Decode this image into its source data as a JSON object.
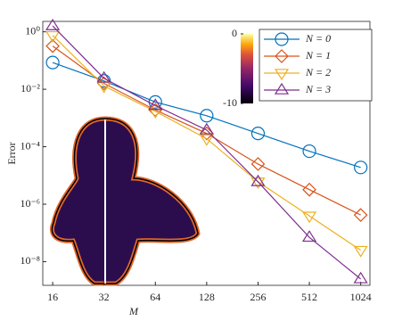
{
  "chart_data": {
    "type": "line",
    "xlabel": "M",
    "ylabel": "Error",
    "x": [
      16,
      32,
      64,
      128,
      256,
      512,
      1024
    ],
    "xscale": "log",
    "yscale": "log",
    "xlim": [
      14,
      1160
    ],
    "ylim": [
      1.5e-09,
      2.3
    ],
    "xticks": [
      16,
      32,
      64,
      128,
      256,
      512,
      1024
    ],
    "yticks": [
      {
        "value": 1,
        "label": "10⁰"
      },
      {
        "value": 0.01,
        "label": "10⁻²"
      },
      {
        "value": 0.0001,
        "label": "10⁻⁴"
      },
      {
        "value": 1e-06,
        "label": "10⁻⁶"
      },
      {
        "value": 1e-08,
        "label": "10⁻⁸"
      }
    ],
    "legend": "upper right",
    "series": [
      {
        "name": "N = 0",
        "color": "#0072BD",
        "marker": "circle",
        "values": [
          0.085,
          0.0195,
          0.0036,
          0.0012,
          0.00029,
          7e-05,
          1.9e-05
        ]
      },
      {
        "name": "N = 1",
        "color": "#D95319",
        "marker": "diamond",
        "values": [
          0.32,
          0.016,
          0.0019,
          0.00029,
          2.5e-05,
          3.2e-06,
          4.2e-07
        ]
      },
      {
        "name": "N = 2",
        "color": "#EDB120",
        "marker": "triangle-down",
        "values": [
          0.75,
          0.013,
          0.0017,
          0.00019,
          6e-06,
          3.9e-07,
          2.5e-08
        ]
      },
      {
        "name": "N = 3",
        "color": "#7E2F8E",
        "marker": "triangle-up",
        "values": [
          1.6,
          0.024,
          0.0027,
          0.00038,
          6e-06,
          7e-08,
          2.5e-09
        ]
      }
    ],
    "colorbar": {
      "clim": [
        -10,
        0
      ],
      "ticks": [
        0,
        -10
      ]
    }
  }
}
